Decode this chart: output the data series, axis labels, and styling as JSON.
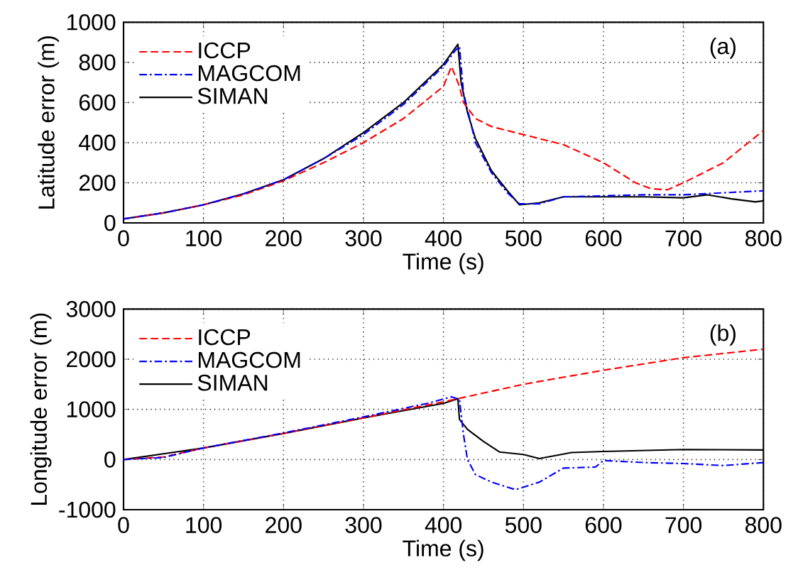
{
  "chart_data": [
    {
      "type": "line",
      "xlabel": "Time (s)",
      "ylabel": "Latitude error (m)",
      "xlim": [
        0,
        800
      ],
      "ylim": [
        0,
        1000
      ],
      "xticks": [
        0,
        100,
        200,
        300,
        400,
        500,
        600,
        700,
        800
      ],
      "yticks": [
        0,
        200,
        400,
        600,
        800,
        1000
      ],
      "grid": true,
      "legend": "top left",
      "annotations": [
        "(a)"
      ],
      "series": [
        {
          "name": "ICCP",
          "color": "#ff0000",
          "line_style": "dashed",
          "x": [
            0,
            50,
            100,
            150,
            200,
            250,
            300,
            350,
            400,
            410,
            420,
            425,
            440,
            460,
            480,
            500,
            550,
            600,
            640,
            660,
            680,
            700,
            750,
            800
          ],
          "values": [
            20,
            50,
            90,
            140,
            210,
            300,
            400,
            520,
            680,
            780,
            680,
            600,
            520,
            480,
            460,
            440,
            390,
            300,
            200,
            170,
            165,
            200,
            300,
            460
          ]
        },
        {
          "name": "MAGCOM",
          "color": "#0000ff",
          "line_style": "dashdot",
          "x": [
            0,
            50,
            100,
            150,
            200,
            250,
            300,
            350,
            400,
            415,
            420,
            425,
            440,
            460,
            480,
            495,
            520,
            550,
            600,
            650,
            700,
            750,
            800
          ],
          "values": [
            20,
            50,
            90,
            145,
            215,
            320,
            440,
            590,
            780,
            860,
            880,
            650,
            400,
            250,
            150,
            95,
            95,
            130,
            135,
            140,
            140,
            150,
            160
          ]
        },
        {
          "name": "SIMAN",
          "color": "#000000",
          "line_style": "solid",
          "x": [
            0,
            50,
            100,
            150,
            200,
            250,
            300,
            350,
            400,
            418,
            422,
            430,
            440,
            460,
            480,
            495,
            520,
            550,
            600,
            650,
            700,
            730,
            760,
            790,
            800
          ],
          "values": [
            20,
            50,
            90,
            145,
            215,
            320,
            450,
            600,
            790,
            890,
            700,
            550,
            420,
            260,
            160,
            90,
            100,
            130,
            130,
            130,
            125,
            140,
            120,
            105,
            110
          ]
        }
      ]
    },
    {
      "type": "line",
      "xlabel": "Time (s)",
      "ylabel": "Longitude error (m)",
      "xlim": [
        0,
        800
      ],
      "ylim": [
        -1000,
        3000
      ],
      "xticks": [
        0,
        100,
        200,
        300,
        400,
        500,
        600,
        700,
        800
      ],
      "yticks": [
        -1000,
        0,
        1000,
        2000,
        3000
      ],
      "grid": true,
      "legend": "top left",
      "annotations": [
        "(b)"
      ],
      "series": [
        {
          "name": "ICCP",
          "color": "#ff0000",
          "line_style": "dashed",
          "x": [
            0,
            50,
            100,
            200,
            300,
            400,
            420,
            500,
            600,
            700,
            800
          ],
          "values": [
            0,
            50,
            230,
            520,
            830,
            1150,
            1220,
            1500,
            1780,
            2030,
            2200
          ]
        },
        {
          "name": "MAGCOM",
          "color": "#0000ff",
          "line_style": "dashdot",
          "x": [
            0,
            50,
            100,
            200,
            300,
            380,
            410,
            420,
            425,
            430,
            440,
            460,
            490,
            520,
            550,
            590,
            600,
            650,
            700,
            750,
            800
          ],
          "values": [
            0,
            40,
            230,
            530,
            850,
            1120,
            1250,
            1200,
            500,
            0,
            -300,
            -450,
            -600,
            -450,
            -170,
            -150,
            -20,
            -60,
            -80,
            -120,
            -60
          ]
        },
        {
          "name": "SIMAN",
          "color": "#000000",
          "line_style": "solid",
          "x": [
            0,
            100,
            200,
            300,
            400,
            418,
            420,
            430,
            450,
            470,
            500,
            520,
            540,
            560,
            600,
            700,
            800
          ],
          "values": [
            0,
            230,
            520,
            830,
            1120,
            1210,
            800,
            600,
            360,
            150,
            100,
            20,
            80,
            140,
            160,
            200,
            190
          ]
        }
      ]
    }
  ]
}
